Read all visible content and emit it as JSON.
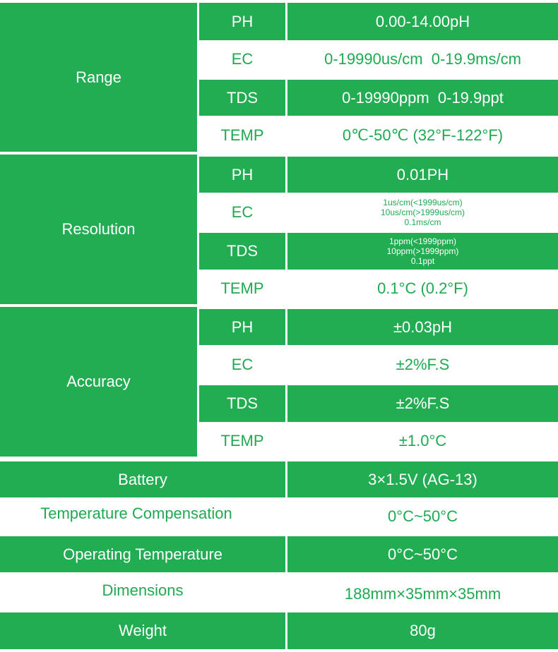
{
  "sections": {
    "range": {
      "label": "Range",
      "rows": [
        {
          "param": "PH",
          "value": "0.00-14.00pH"
        },
        {
          "param": "EC",
          "value": "0-19990us/cm  0-19.9ms/cm"
        },
        {
          "param": "TDS",
          "value": "0-19990ppm  0-19.9ppt"
        },
        {
          "param": "TEMP",
          "value": "0℃-50℃ (32°F-122°F)"
        }
      ]
    },
    "resolution": {
      "label": "Resolution",
      "rows": [
        {
          "param": "PH",
          "value": "0.01PH"
        },
        {
          "param": "EC",
          "lines": [
            "1us/cm(<1999us/cm)",
            "10us/cm(>1999us/cm)",
            "0.1ms/cm"
          ]
        },
        {
          "param": "TDS",
          "lines": [
            "1ppm(<1999ppm)",
            "10ppm(>1999ppm)",
            "0.1ppt"
          ]
        },
        {
          "param": "TEMP",
          "value": "0.1°C (0.2°F)"
        }
      ]
    },
    "accuracy": {
      "label": "Accuracy",
      "rows": [
        {
          "param": "PH",
          "value": "±0.03pH"
        },
        {
          "param": "EC",
          "value": "±2%F.S"
        },
        {
          "param": "TDS",
          "value": "±2%F.S"
        },
        {
          "param": "TEMP",
          "value": "±1.0°C"
        }
      ]
    }
  },
  "specs": [
    {
      "label": "Battery",
      "value": "3×1.5V (AG-13)"
    },
    {
      "label": "Temperature Compensation",
      "value": "0°C~50°C"
    },
    {
      "label": "Operating Temperature",
      "value": "0°C~50°C"
    },
    {
      "label": "Dimensions",
      "value": "188mm×35mm×35mm"
    },
    {
      "label": "Weight",
      "value": "80g"
    }
  ],
  "colors": {
    "green": "#22ad53",
    "green_text": "#1faa52",
    "white": "#ffffff"
  }
}
